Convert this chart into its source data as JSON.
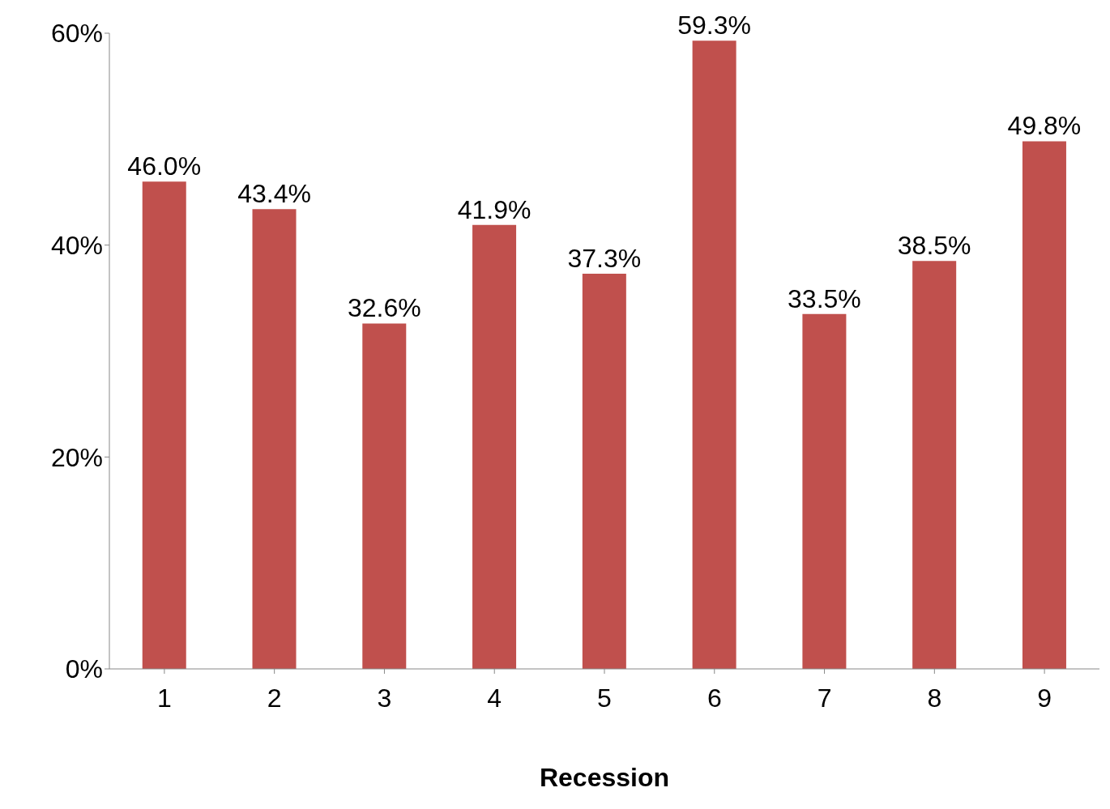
{
  "chart_data": {
    "type": "bar",
    "xlabel": "Recession",
    "categories": [
      "1",
      "2",
      "3",
      "4",
      "5",
      "6",
      "7",
      "8",
      "9"
    ],
    "values": [
      46.0,
      43.4,
      32.6,
      41.9,
      37.3,
      59.3,
      33.5,
      38.5,
      49.8
    ],
    "value_labels": [
      "46.0%",
      "43.4%",
      "32.6%",
      "41.9%",
      "37.3%",
      "59.3%",
      "33.5%",
      "38.5%",
      "49.8%"
    ],
    "color": "#c0504d",
    "ylim": [
      0,
      60
    ],
    "yticks": [
      {
        "value": 0,
        "label": "0%"
      },
      {
        "value": 20,
        "label": "20%"
      },
      {
        "value": 40,
        "label": "40%"
      },
      {
        "value": 60,
        "label": "60%"
      }
    ],
    "grid": false,
    "legend": false
  }
}
